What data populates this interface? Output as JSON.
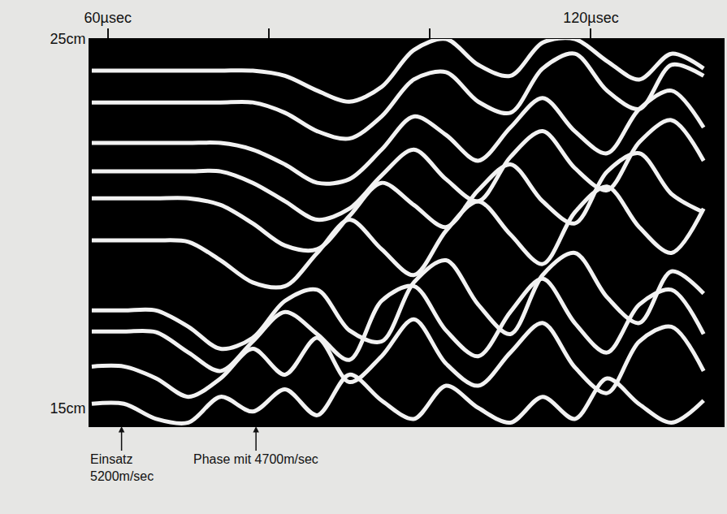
{
  "chart_data": {
    "type": "line",
    "color": "#f2f2f2",
    "grid": false,
    "xlim": [
      57.7,
      136.5
    ],
    "xticks": [
      {
        "value": 60,
        "label": "60µsec"
      },
      {
        "value": 80,
        "label": null
      },
      {
        "value": 100,
        "label": null
      },
      {
        "value": 120,
        "label": "120µsec"
      }
    ],
    "ylim": [
      14.5,
      25.0
    ],
    "yticks": [
      {
        "value": 15,
        "label": "15cm"
      },
      {
        "value": 25,
        "label": "25cm"
      }
    ],
    "x": [
      58,
      62,
      66,
      70,
      74,
      78,
      82,
      86,
      90,
      94,
      98,
      102,
      106,
      110,
      114,
      118,
      122,
      126,
      130,
      134
    ],
    "series": [
      {
        "values": [
          24.14,
          24.14,
          24.14,
          24.14,
          24.14,
          24.14,
          24.0,
          23.6,
          23.3,
          23.7,
          24.7,
          25.0,
          24.3,
          24.0,
          24.9,
          25.0,
          24.4,
          23.9,
          24.6,
          24.2
        ]
      },
      {
        "values": [
          23.28,
          23.28,
          23.28,
          23.28,
          23.28,
          23.28,
          23.0,
          22.5,
          22.3,
          22.9,
          23.9,
          24.1,
          23.3,
          23.0,
          24.2,
          24.6,
          23.6,
          23.1,
          24.3,
          24.0
        ]
      },
      {
        "values": [
          22.18,
          22.18,
          22.18,
          22.18,
          22.18,
          22.0,
          21.6,
          21.1,
          21.2,
          22.0,
          22.9,
          22.4,
          21.7,
          22.6,
          23.4,
          22.5,
          21.9,
          23.1,
          23.6,
          22.6
        ]
      },
      {
        "values": [
          21.41,
          21.41,
          21.41,
          21.41,
          21.41,
          21.1,
          20.6,
          20.1,
          20.4,
          21.3,
          22.0,
          21.2,
          20.6,
          21.8,
          22.5,
          21.5,
          20.9,
          22.2,
          22.8,
          21.7
        ]
      },
      {
        "values": [
          20.68,
          20.68,
          20.68,
          20.68,
          20.5,
          20.0,
          19.4,
          19.3,
          20.2,
          21.1,
          20.5,
          19.9,
          20.9,
          21.6,
          20.6,
          20.0,
          21.4,
          21.9,
          20.8,
          20.3
        ]
      },
      {
        "values": [
          19.54,
          19.54,
          19.54,
          19.5,
          19.0,
          18.4,
          18.3,
          19.2,
          20.1,
          19.3,
          18.6,
          19.8,
          20.6,
          19.7,
          18.9,
          20.3,
          21.0,
          19.9,
          19.2,
          20.4
        ]
      },
      {
        "values": [
          17.64,
          17.64,
          17.64,
          17.2,
          16.6,
          16.9,
          17.9,
          18.2,
          17.1,
          16.8,
          18.4,
          19.0,
          17.8,
          17.0,
          18.6,
          19.2,
          18.0,
          17.3,
          18.7,
          18.1
        ]
      },
      {
        "values": [
          17.07,
          17.07,
          17.05,
          16.5,
          16.0,
          16.8,
          17.6,
          17.0,
          16.3,
          17.9,
          18.3,
          17.1,
          16.4,
          17.6,
          18.5,
          17.3,
          16.5,
          17.8,
          18.2,
          17.0
        ]
      },
      {
        "values": [
          16.12,
          16.12,
          15.8,
          15.3,
          15.8,
          16.6,
          15.9,
          16.9,
          15.7,
          16.4,
          17.4,
          16.2,
          15.6,
          16.5,
          17.3,
          16.1,
          15.4,
          16.8,
          17.2,
          16.0
        ]
      },
      {
        "values": [
          15.11,
          15.11,
          14.7,
          14.6,
          15.3,
          14.9,
          15.5,
          14.8,
          15.9,
          15.2,
          14.7,
          15.6,
          15.0,
          14.6,
          15.3,
          14.7,
          15.8,
          15.1,
          14.6,
          15.2
        ]
      }
    ],
    "annotations": [
      {
        "text": "Einsatz\n5200m/sec",
        "x": 61.7
      },
      {
        "text": "Phase mit 4700m/sec",
        "x": 78.4
      }
    ]
  }
}
